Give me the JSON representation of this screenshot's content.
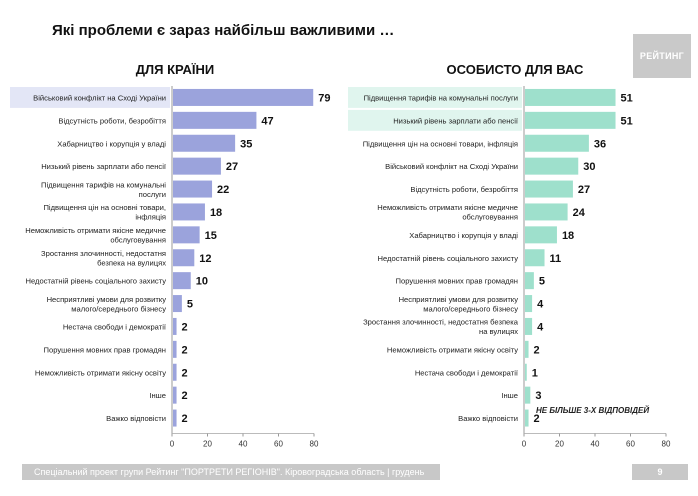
{
  "page": {
    "title": "Які проблеми є зараз найбільш важливими …",
    "logo": "РЕЙТИНГ",
    "note": "НЕ БІЛЬШЕ 3-Х ВІДПОВІДЕЙ",
    "footer": "Спеціальний проект групи Рейтинг \"ПОРТРЕТИ РЕГІОНІВ\". Кіровоградська область | грудень 2018",
    "page_number": "9"
  },
  "colors": {
    "left_bar": "#9ba3dc",
    "left_highlight": "#e3e6f6",
    "right_bar": "#9ee0cc",
    "right_highlight": "#e0f5ee"
  },
  "chart_data": [
    {
      "type": "bar",
      "orientation": "horizontal",
      "title": "ДЛЯ КРАЇНИ",
      "categories": [
        [
          "Військовий конфлікт на Сході України"
        ],
        [
          "Відсутність роботи, безробіття"
        ],
        [
          "Хабарництво і корупція у владі"
        ],
        [
          "Низький рівень зарплати або пенсії"
        ],
        [
          "Підвищення тарифів на комунальні",
          "послуги"
        ],
        [
          "Підвищення цін на основні товари,",
          "інфляція"
        ],
        [
          "Неможливість отримати якісне медичне",
          "обслуговування"
        ],
        [
          "Зростання злочинності, недостатня",
          "безпека на вулицях"
        ],
        [
          "Недостатній рівень соціального захисту"
        ],
        [
          "Несприятливі умови для розвитку",
          "малого/середнього бізнесу"
        ],
        [
          "Нестача свободи і демократії"
        ],
        [
          "Порушення мовних прав громадян"
        ],
        [
          "Неможливість отримати якісну освіту"
        ],
        [
          "Інше"
        ],
        [
          "Важко відповісти"
        ]
      ],
      "values": [
        79,
        47,
        35,
        27,
        22,
        18,
        15,
        12,
        10,
        5,
        2,
        2,
        2,
        2,
        2
      ],
      "highlight_rows": [
        0
      ],
      "xlim": [
        0,
        80
      ],
      "xticks": [
        "0",
        "20",
        "40",
        "60",
        "80"
      ]
    },
    {
      "type": "bar",
      "orientation": "horizontal",
      "title": "ОСОБИСТО ДЛЯ ВАС",
      "categories": [
        [
          "Підвищення тарифів на комунальні послуги"
        ],
        [
          "Низький рівень зарплати або пенсії"
        ],
        [
          "Підвищення цін на основні товари, інфляція"
        ],
        [
          "Військовий конфлікт на Сході України"
        ],
        [
          "Відсутність роботи, безробіття"
        ],
        [
          "Неможливість отримати якісне медичне",
          "обслуговування"
        ],
        [
          "Хабарництво і корупція у владі"
        ],
        [
          "Недостатній рівень соціального захисту"
        ],
        [
          "Порушення мовних прав громадян"
        ],
        [
          "Несприятливі умови для розвитку",
          "малого/середнього бізнесу"
        ],
        [
          "Зростання злочинності, недостатня безпека",
          "на вулицях"
        ],
        [
          "Неможливість отримати якісну освіту"
        ],
        [
          "Нестача свободи і демократії"
        ],
        [
          "Інше"
        ],
        [
          "Важко відповісти"
        ]
      ],
      "values": [
        51,
        51,
        36,
        30,
        27,
        24,
        18,
        11,
        5,
        4,
        4,
        2,
        1,
        3,
        2
      ],
      "highlight_rows": [
        0,
        1
      ],
      "xlim": [
        0,
        80
      ],
      "xticks": [
        "0",
        "20",
        "40",
        "60",
        "80"
      ]
    }
  ]
}
